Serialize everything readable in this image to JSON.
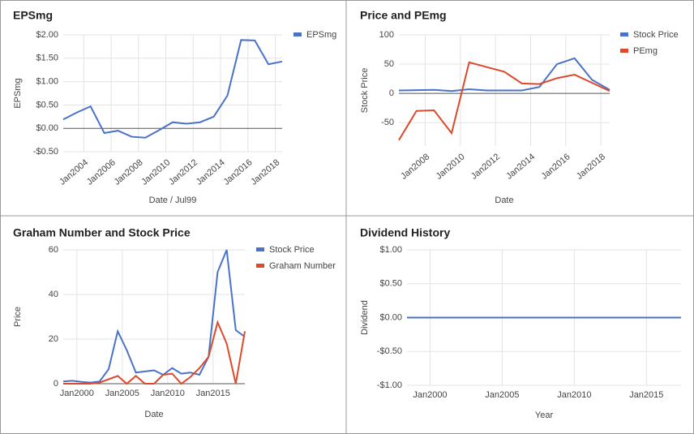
{
  "chart_data": [
    {
      "type": "line",
      "title": "EPSmg",
      "x_label": "Date / Jul99",
      "y_label": "EPSmg",
      "legend": "right",
      "x": [
        2002.5,
        2003.5,
        2004.5,
        2005.5,
        2006.5,
        2007.5,
        2008.5,
        2009.5,
        2010.5,
        2011.5,
        2012.5,
        2013.5,
        2014.5,
        2015.5,
        2016.5,
        2017.5,
        2018.5
      ],
      "series": [
        {
          "name": "EPSmg",
          "color": "#4a72c8",
          "values": [
            0.19,
            0.34,
            0.47,
            -0.1,
            -0.05,
            -0.18,
            -0.2,
            -0.04,
            0.13,
            0.1,
            0.13,
            0.25,
            0.7,
            1.89,
            1.88,
            1.37,
            1.43
          ]
        }
      ],
      "xlim": [
        2002.5,
        2018.5
      ],
      "xticks": [
        {
          "value": 2004,
          "label": "Jan2004"
        },
        {
          "value": 2006,
          "label": "Jan2006"
        },
        {
          "value": 2008,
          "label": "Jan2008"
        },
        {
          "value": 2010,
          "label": "Jan2010"
        },
        {
          "value": 2012,
          "label": "Jan2012"
        },
        {
          "value": 2014,
          "label": "Jan2014"
        },
        {
          "value": 2016,
          "label": "Jan2016"
        },
        {
          "value": 2018,
          "label": "Jan2018"
        }
      ],
      "ylim": [
        -0.5,
        2.0
      ],
      "yticks": [
        {
          "value": -0.5,
          "label": "-$0.50"
        },
        {
          "value": 0,
          "label": "$0.00"
        },
        {
          "value": 0.5,
          "label": "$0.50"
        },
        {
          "value": 1.0,
          "label": "$1.00"
        },
        {
          "value": 1.5,
          "label": "$1.50"
        },
        {
          "value": 2.0,
          "label": "$2.00"
        }
      ],
      "grid": true
    },
    {
      "type": "line",
      "title": "Price and PEmg",
      "x_label": "Date",
      "y_label": "Stock Price",
      "legend": "right",
      "x": [
        2006.5,
        2007.5,
        2008.5,
        2009.5,
        2010.5,
        2011.5,
        2012.5,
        2013.5,
        2014.5,
        2015.5,
        2016.5,
        2017.5,
        2018.5
      ],
      "series": [
        {
          "name": "Stock Price",
          "color": "#4a72c8",
          "values": [
            5,
            5.5,
            6,
            4,
            7,
            5,
            5,
            5,
            11,
            50,
            60,
            23,
            6
          ]
        },
        {
          "name": "PEmg",
          "color": "#dc4a2c",
          "values": [
            -80,
            -30,
            -29,
            -68,
            53,
            45,
            37,
            17,
            16,
            26,
            32,
            18,
            4
          ]
        }
      ],
      "xlim": [
        2006.5,
        2018.5
      ],
      "xticks": [
        {
          "value": 2008,
          "label": "Jan2008"
        },
        {
          "value": 2010,
          "label": "Jan2010"
        },
        {
          "value": 2012,
          "label": "Jan2012"
        },
        {
          "value": 2014,
          "label": "Jan2014"
        },
        {
          "value": 2016,
          "label": "Jan2016"
        },
        {
          "value": 2018,
          "label": "Jan2018"
        }
      ],
      "ylim": [
        -90,
        100
      ],
      "yticks": [
        -50,
        0,
        50,
        100
      ],
      "grid": true
    },
    {
      "type": "line",
      "title": "Graham Number and Stock Price",
      "x_label": "Date",
      "y_label": "Price",
      "legend": "right",
      "x": [
        1998.5,
        1999.5,
        2000.5,
        2001.5,
        2002.5,
        2003.5,
        2004.5,
        2005.5,
        2006.5,
        2007.5,
        2008.5,
        2009.5,
        2010.5,
        2011.5,
        2012.5,
        2013.5,
        2014.5,
        2015.5,
        2016.5,
        2017.5,
        2018.5
      ],
      "series": [
        {
          "name": "Stock Price",
          "color": "#4a72c8",
          "values": [
            1.0,
            1.3,
            0.8,
            0.5,
            1.0,
            6.5,
            23.5,
            15,
            5,
            5.5,
            6,
            4,
            7,
            4.5,
            5,
            4,
            12,
            50,
            60,
            24,
            21
          ]
        },
        {
          "name": "Graham Number",
          "color": "#dc4a2c",
          "values": [
            0,
            0,
            0,
            0,
            0.5,
            2,
            3.5,
            0,
            3.5,
            0,
            0,
            4,
            4.5,
            0,
            3,
            7,
            12,
            27.5,
            18,
            0,
            23.5
          ]
        }
      ],
      "xlim": [
        1998.5,
        2018.5
      ],
      "xticks": [
        {
          "value": 2000,
          "label": "Jan2000"
        },
        {
          "value": 2005,
          "label": "Jan2005"
        },
        {
          "value": 2010,
          "label": "Jan2010"
        },
        {
          "value": 2015,
          "label": "Jan2015"
        }
      ],
      "ylim": [
        0,
        60
      ],
      "yticks": [
        0,
        20,
        40,
        60
      ],
      "grid": true
    },
    {
      "type": "line",
      "title": "Dividend History",
      "x_label": "Year",
      "y_label": "Dividend",
      "x": [
        1998.4,
        2017.4
      ],
      "series": [
        {
          "color": "#4a72c8",
          "values": [
            0,
            0
          ]
        }
      ],
      "xlim": [
        1998.4,
        2017.4
      ],
      "xticks": [
        {
          "value": 2000,
          "label": "Jan2000"
        },
        {
          "value": 2005,
          "label": "Jan2005"
        },
        {
          "value": 2010,
          "label": "Jan2010"
        },
        {
          "value": 2015,
          "label": "Jan2015"
        }
      ],
      "ylim": [
        -1.0,
        1.0
      ],
      "yticks": [
        {
          "value": -1.0,
          "label": "-$1.00"
        },
        {
          "value": -0.5,
          "label": "-$0.50"
        },
        {
          "value": 0,
          "label": "$0.00"
        },
        {
          "value": 0.5,
          "label": "$0.50"
        },
        {
          "value": 1.0,
          "label": "$1.00"
        }
      ],
      "grid": true
    }
  ]
}
